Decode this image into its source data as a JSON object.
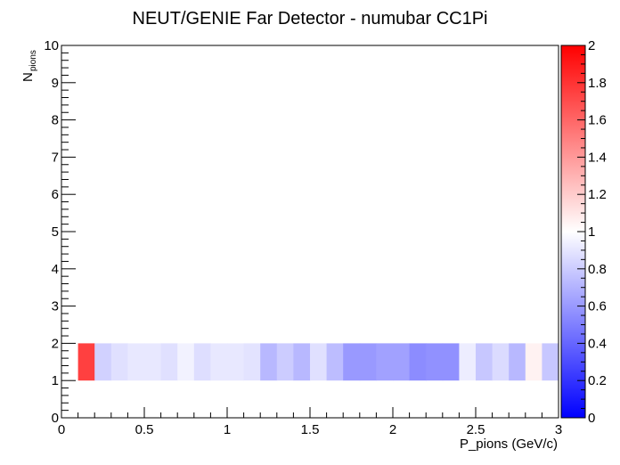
{
  "chart_data": {
    "type": "heatmap",
    "title": "NEUT/GENIE Far Detector - numubar CC1Pi",
    "xlabel": "P_pions (GeV/c)",
    "ylabel_main": "N",
    "ylabel_sub": "pions",
    "xlim": [
      0,
      3
    ],
    "ylim": [
      0,
      10
    ],
    "x_ticks": [
      "0",
      "0.5",
      "1",
      "1.5",
      "2",
      "2.5",
      "3"
    ],
    "y_ticks": [
      "0",
      "1",
      "2",
      "3",
      "4",
      "5",
      "6",
      "7",
      "8",
      "9",
      "10"
    ],
    "zlim": [
      0,
      2
    ],
    "z_ticks": [
      "0",
      "0.2",
      "0.4",
      "0.6",
      "0.8",
      "1",
      "1.2",
      "1.4",
      "1.6",
      "1.8",
      "2"
    ],
    "colormap": [
      "#0000ff",
      "#ffffff",
      "#ff0000"
    ],
    "y_bin": [
      1,
      2
    ],
    "x_bin_width": 0.1,
    "cells": [
      {
        "x": 0.0,
        "z": null
      },
      {
        "x": 0.1,
        "z": 1.75
      },
      {
        "x": 0.2,
        "z": 0.82
      },
      {
        "x": 0.3,
        "z": 0.88
      },
      {
        "x": 0.4,
        "z": 0.91
      },
      {
        "x": 0.5,
        "z": 0.91
      },
      {
        "x": 0.6,
        "z": 0.88
      },
      {
        "x": 0.7,
        "z": 0.95
      },
      {
        "x": 0.8,
        "z": 0.87
      },
      {
        "x": 0.9,
        "z": 0.91
      },
      {
        "x": 1.0,
        "z": 0.91
      },
      {
        "x": 1.1,
        "z": 0.89
      },
      {
        "x": 1.2,
        "z": 0.72
      },
      {
        "x": 1.3,
        "z": 0.8
      },
      {
        "x": 1.4,
        "z": 0.72
      },
      {
        "x": 1.5,
        "z": 0.88
      },
      {
        "x": 1.6,
        "z": 0.74
      },
      {
        "x": 1.7,
        "z": 0.6
      },
      {
        "x": 1.8,
        "z": 0.6
      },
      {
        "x": 1.9,
        "z": 0.63
      },
      {
        "x": 2.0,
        "z": 0.63
      },
      {
        "x": 2.1,
        "z": 0.55
      },
      {
        "x": 2.2,
        "z": 0.57
      },
      {
        "x": 2.3,
        "z": 0.57
      },
      {
        "x": 2.4,
        "z": 0.93
      },
      {
        "x": 2.5,
        "z": 0.78
      },
      {
        "x": 2.6,
        "z": 0.86
      },
      {
        "x": 2.7,
        "z": 0.72
      },
      {
        "x": 2.8,
        "z": 1.05
      },
      {
        "x": 2.9,
        "z": 0.78
      }
    ]
  }
}
